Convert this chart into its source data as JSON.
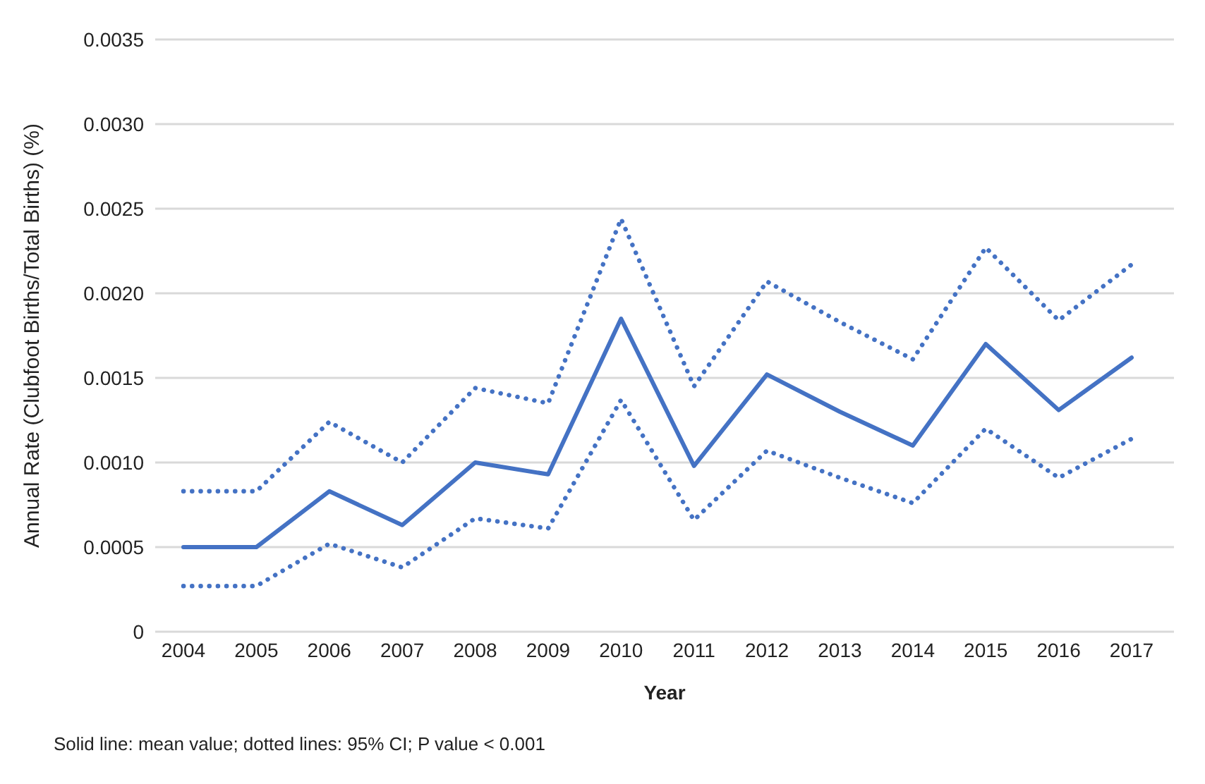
{
  "chart_data": {
    "type": "line",
    "xlabel": "Year",
    "ylabel": "Annual Rate (Clubfoot Births/Total Births) (%)",
    "categories": [
      "2004",
      "2005",
      "2006",
      "2007",
      "2008",
      "2009",
      "2010",
      "2011",
      "2012",
      "2013",
      "2014",
      "2015",
      "2016",
      "2017"
    ],
    "series": [
      {
        "color": "#4472c4",
        "line_style": "dotted",
        "values": [
          0.00083,
          0.00083,
          0.00124,
          0.001,
          0.00144,
          0.00135,
          0.00244,
          0.00145,
          0.00207,
          0.00183,
          0.00161,
          0.00227,
          0.00184,
          0.00217
        ]
      },
      {
        "color": "#4472c4",
        "line_style": "solid",
        "values": [
          0.0005,
          0.0005,
          0.00083,
          0.00063,
          0.001,
          0.00093,
          0.00185,
          0.00098,
          0.00152,
          0.0013,
          0.0011,
          0.0017,
          0.00131,
          0.00162
        ]
      },
      {
        "color": "#4472c4",
        "line_style": "dotted",
        "values": [
          0.00027,
          0.00027,
          0.00052,
          0.00038,
          0.00067,
          0.00061,
          0.00137,
          0.00066,
          0.00107,
          0.00091,
          0.00076,
          0.0012,
          0.00091,
          0.00114
        ]
      }
    ],
    "ylim": [
      0,
      0.0035
    ],
    "yticks": [
      0,
      0.0005,
      {
        "value": 0.001,
        "label": "0.0010"
      },
      0.0015,
      {
        "value": 0.002,
        "label": "0.0020"
      },
      0.0025,
      {
        "value": 0.003,
        "label": "0.0030"
      },
      0.0035
    ],
    "grid": "y",
    "marker": "none",
    "annotations": [
      "Solid line: mean value; dotted lines: 95% CI; P value < 0.001"
    ]
  }
}
